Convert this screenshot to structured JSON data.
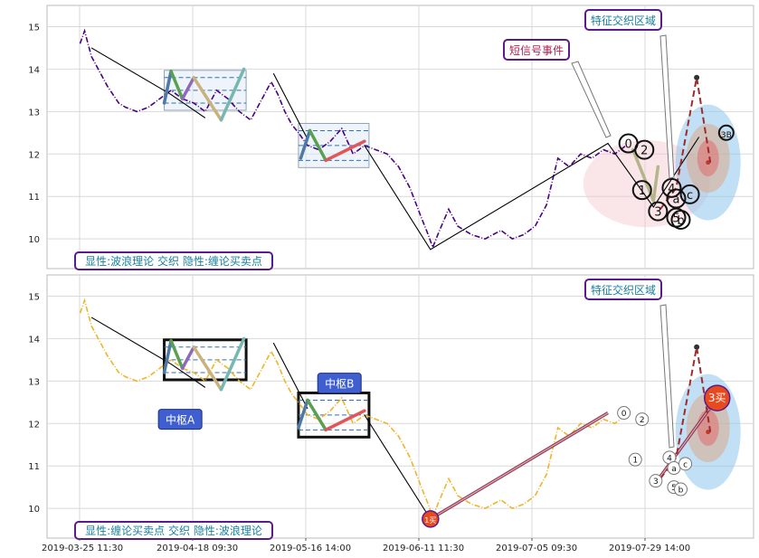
{
  "chart_data": [
    {
      "type": "line",
      "panel": "top",
      "ylim": [
        9.3,
        15.5
      ],
      "y_ticks": [
        10,
        11,
        12,
        13,
        14,
        15
      ],
      "grid": true,
      "series": [
        {
          "role": "price",
          "color": "#4B0082",
          "style": "dash-dot",
          "points": [
            [
              0.0,
              14.6
            ],
            [
              0.2,
              14.9
            ],
            [
              0.5,
              14.3
            ],
            [
              1.2,
              13.6
            ],
            [
              1.7,
              13.2
            ],
            [
              2.0,
              13.1
            ],
            [
              2.5,
              13.0
            ],
            [
              3.0,
              13.1
            ],
            [
              3.5,
              13.3
            ],
            [
              4.0,
              13.5
            ],
            [
              4.5,
              13.3
            ],
            [
              5.0,
              13.2
            ],
            [
              5.5,
              13.0
            ],
            [
              6.0,
              13.5
            ],
            [
              6.5,
              13.3
            ],
            [
              7.0,
              13.0
            ],
            [
              7.5,
              12.8
            ],
            [
              8.0,
              13.3
            ],
            [
              8.4,
              13.7
            ],
            [
              8.7,
              13.4
            ],
            [
              9.0,
              13.0
            ],
            [
              9.3,
              12.7
            ],
            [
              9.6,
              12.5
            ],
            [
              10.0,
              12.2
            ],
            [
              10.5,
              12.1
            ],
            [
              11.0,
              12.3
            ],
            [
              11.5,
              12.6
            ],
            [
              12.0,
              12.0
            ],
            [
              12.5,
              12.2
            ],
            [
              13.0,
              12.1
            ],
            [
              13.5,
              12.0
            ],
            [
              14.0,
              11.7
            ],
            [
              14.5,
              11.2
            ],
            [
              15.0,
              10.5
            ],
            [
              15.3,
              10.1
            ],
            [
              15.5,
              9.8
            ],
            [
              15.8,
              10.2
            ],
            [
              16.2,
              10.7
            ],
            [
              16.6,
              10.3
            ],
            [
              17.2,
              10.1
            ],
            [
              17.8,
              10.0
            ],
            [
              18.5,
              10.2
            ],
            [
              19.0,
              10.0
            ],
            [
              19.5,
              10.1
            ],
            [
              20.0,
              10.3
            ],
            [
              20.5,
              10.8
            ],
            [
              21.0,
              11.9
            ],
            [
              21.5,
              11.7
            ],
            [
              22.0,
              12.0
            ],
            [
              22.5,
              11.9
            ],
            [
              23.0,
              12.1
            ],
            [
              23.5,
              12.0
            ],
            [
              24.0,
              12.2
            ]
          ]
        },
        {
          "role": "stroke",
          "color": "#000000",
          "points": [
            [
              0.5,
              14.5
            ],
            [
              4.0,
              13.4
            ],
            [
              5.5,
              12.85
            ]
          ]
        },
        {
          "role": "stroke",
          "color": "#000000",
          "points": [
            [
              8.5,
              13.9
            ],
            [
              10.0,
              12.35
            ]
          ]
        },
        {
          "role": "stroke",
          "color": "#000000",
          "points": [
            [
              12.5,
              12.2
            ],
            [
              15.4,
              9.75
            ],
            [
              23.2,
              12.25
            ],
            [
              25.2,
              10.75
            ],
            [
              27.2,
              12.4
            ]
          ]
        },
        {
          "role": "wave",
          "segments": [
            {
              "color": "#4E79A7",
              "from": [
                3.7,
                13.2
              ],
              "to": [
                4.0,
                13.95
              ]
            },
            {
              "color": "#59A14F",
              "from": [
                4.0,
                13.95
              ],
              "to": [
                4.5,
                13.3
              ]
            },
            {
              "color": "#8E6BB8",
              "from": [
                4.5,
                13.3
              ],
              "to": [
                5.0,
                13.8
              ]
            },
            {
              "color": "#C9B27C",
              "from": [
                5.0,
                13.8
              ],
              "to": [
                6.2,
                12.8
              ]
            },
            {
              "color": "#76B7B2",
              "from": [
                6.2,
                12.8
              ],
              "to": [
                7.2,
                14.0
              ]
            },
            {
              "color": "#4E79A7",
              "from": [
                9.7,
                11.9
              ],
              "to": [
                10.1,
                12.55
              ]
            },
            {
              "color": "#59A14F",
              "from": [
                10.1,
                12.55
              ],
              "to": [
                10.8,
                11.85
              ]
            },
            {
              "color": "#E15759",
              "from": [
                10.8,
                11.85
              ],
              "to": [
                12.5,
                12.3
              ]
            },
            {
              "color": "#B5B58A",
              "from": [
                24.3,
                12.1
              ],
              "to": [
                25.2,
                10.9
              ]
            },
            {
              "color": "#B5B58A",
              "from": [
                25.2,
                10.9
              ],
              "to": [
                25.4,
                11.7
              ]
            }
          ]
        },
        {
          "role": "forecast",
          "color": "#A02A2A",
          "style": "dashed",
          "points": [
            [
              25.5,
              10.7
            ],
            [
              26.2,
              11.2
            ],
            [
              27.1,
              13.8
            ],
            [
              27.7,
              11.8
            ]
          ]
        }
      ],
      "zones": [
        {
          "x": [
            3.7,
            7.3
          ],
          "y": [
            13.2,
            13.8
          ],
          "style": "center-box"
        },
        {
          "x": [
            9.6,
            12.7
          ],
          "y": [
            11.85,
            12.55
          ],
          "style": "center-box"
        }
      ],
      "markers": [
        {
          "label": "0",
          "x": 24.1,
          "y": 12.25
        },
        {
          "label": "2",
          "x": 24.8,
          "y": 12.1
        },
        {
          "label": "1",
          "x": 24.7,
          "y": 11.15
        },
        {
          "label": "3",
          "x": 25.4,
          "y": 10.65
        },
        {
          "label": "4",
          "x": 26.0,
          "y": 11.2
        },
        {
          "label": "a",
          "x": 26.2,
          "y": 10.95
        },
        {
          "label": "5",
          "x": 26.2,
          "y": 10.5
        },
        {
          "label": "b",
          "x": 26.4,
          "y": 10.45
        },
        {
          "label": "c",
          "x": 26.8,
          "y": 11.05
        },
        {
          "label": "3B",
          "x": 28.4,
          "y": 12.5
        }
      ],
      "annotations": [
        {
          "text": "短信号事件",
          "kind": "callout",
          "color": "#B02050"
        },
        {
          "text": "特征交织区域",
          "kind": "callout",
          "color": "#1A7F9E"
        }
      ],
      "corner_label": "显性:波浪理论 交织 隐性:缠论买卖点"
    },
    {
      "type": "line",
      "panel": "bottom",
      "ylim": [
        9.3,
        15.5
      ],
      "y_ticks": [
        10,
        11,
        12,
        13,
        14,
        15
      ],
      "grid": true,
      "x_ticks": [
        "2019-03-25 11:30",
        "2019-04-18 09:30",
        "2019-05-16 14:00",
        "2019-06-11 11:30",
        "2019-07-05 09:30",
        "2019-07-29 14:00"
      ],
      "series": [
        {
          "role": "price",
          "color": "#F0B429",
          "style": "dash-dot",
          "points": [
            [
              0.0,
              14.6
            ],
            [
              0.2,
              14.9
            ],
            [
              0.5,
              14.3
            ],
            [
              1.2,
              13.6
            ],
            [
              1.7,
              13.2
            ],
            [
              2.0,
              13.1
            ],
            [
              2.5,
              13.0
            ],
            [
              3.0,
              13.1
            ],
            [
              3.5,
              13.3
            ],
            [
              4.0,
              13.5
            ],
            [
              4.5,
              13.3
            ],
            [
              5.0,
              13.2
            ],
            [
              5.5,
              13.0
            ],
            [
              6.0,
              13.5
            ],
            [
              6.5,
              13.3
            ],
            [
              7.0,
              13.0
            ],
            [
              7.5,
              12.8
            ],
            [
              8.0,
              13.3
            ],
            [
              8.4,
              13.7
            ],
            [
              8.7,
              13.4
            ],
            [
              9.0,
              13.0
            ],
            [
              9.3,
              12.7
            ],
            [
              9.6,
              12.5
            ],
            [
              10.0,
              12.2
            ],
            [
              10.5,
              12.1
            ],
            [
              11.0,
              12.3
            ],
            [
              11.5,
              12.6
            ],
            [
              12.0,
              12.0
            ],
            [
              12.5,
              12.2
            ],
            [
              13.0,
              12.1
            ],
            [
              13.5,
              12.0
            ],
            [
              14.0,
              11.7
            ],
            [
              14.5,
              11.2
            ],
            [
              15.0,
              10.5
            ],
            [
              15.3,
              10.1
            ],
            [
              15.5,
              9.8
            ],
            [
              15.8,
              10.2
            ],
            [
              16.2,
              10.7
            ],
            [
              16.6,
              10.3
            ],
            [
              17.2,
              10.1
            ],
            [
              17.8,
              10.0
            ],
            [
              18.5,
              10.2
            ],
            [
              19.0,
              10.0
            ],
            [
              19.5,
              10.1
            ],
            [
              20.0,
              10.3
            ],
            [
              20.5,
              10.8
            ],
            [
              21.0,
              11.9
            ],
            [
              21.5,
              11.7
            ],
            [
              22.0,
              12.0
            ],
            [
              22.5,
              11.9
            ],
            [
              23.0,
              12.1
            ],
            [
              23.5,
              12.0
            ],
            [
              24.0,
              12.2
            ]
          ]
        },
        {
          "role": "stroke",
          "color": "#000000",
          "points": [
            [
              0.5,
              14.5
            ],
            [
              4.0,
              13.4
            ],
            [
              5.5,
              12.85
            ]
          ]
        },
        {
          "role": "stroke",
          "color": "#000000",
          "points": [
            [
              8.5,
              13.9
            ],
            [
              10.0,
              12.35
            ]
          ]
        },
        {
          "role": "stroke",
          "color": "#000000",
          "points": [
            [
              12.5,
              12.2
            ],
            [
              15.4,
              9.75
            ]
          ]
        },
        {
          "role": "segment",
          "color": "#8B2D45",
          "points": [
            [
              15.4,
              9.75
            ],
            [
              23.2,
              12.25
            ]
          ]
        },
        {
          "role": "segment",
          "color": "#8B2D45",
          "points": [
            [
              25.3,
              10.6
            ],
            [
              28.0,
              12.6
            ]
          ]
        },
        {
          "role": "wave",
          "segments": [
            {
              "color": "#4E79A7",
              "from": [
                3.7,
                13.2
              ],
              "to": [
                4.0,
                13.95
              ]
            },
            {
              "color": "#59A14F",
              "from": [
                4.0,
                13.95
              ],
              "to": [
                4.5,
                13.3
              ]
            },
            {
              "color": "#8E6BB8",
              "from": [
                4.5,
                13.3
              ],
              "to": [
                5.0,
                13.8
              ]
            },
            {
              "color": "#C9B27C",
              "from": [
                5.0,
                13.8
              ],
              "to": [
                6.2,
                12.8
              ]
            },
            {
              "color": "#76B7B2",
              "from": [
                6.2,
                12.8
              ],
              "to": [
                7.2,
                14.0
              ]
            },
            {
              "color": "#4E79A7",
              "from": [
                9.6,
                11.9
              ],
              "to": [
                10.0,
                12.55
              ]
            },
            {
              "color": "#59A14F",
              "from": [
                10.0,
                12.55
              ],
              "to": [
                10.8,
                11.85
              ]
            },
            {
              "color": "#E15759",
              "from": [
                10.8,
                11.85
              ],
              "to": [
                12.5,
                12.3
              ]
            }
          ]
        },
        {
          "role": "forecast",
          "color": "#A02A2A",
          "style": "dashed",
          "points": [
            [
              25.5,
              10.7
            ],
            [
              26.2,
              11.2
            ],
            [
              27.1,
              13.8
            ],
            [
              27.7,
              11.8
            ]
          ]
        }
      ],
      "zones": [
        {
          "x": [
            3.7,
            7.3
          ],
          "y": [
            13.2,
            13.8
          ],
          "style": "center-box",
          "label": "中枢A"
        },
        {
          "x": [
            9.6,
            12.7
          ],
          "y": [
            11.85,
            12.55
          ],
          "style": "center-box",
          "label": "中枢B"
        }
      ],
      "markers": [
        {
          "label": "0",
          "x": 23.9,
          "y": 12.25
        },
        {
          "label": "2",
          "x": 24.7,
          "y": 12.1
        },
        {
          "label": "1",
          "x": 24.4,
          "y": 11.15
        },
        {
          "label": "3",
          "x": 25.3,
          "y": 10.65
        },
        {
          "label": "4",
          "x": 25.9,
          "y": 11.2
        },
        {
          "label": "a",
          "x": 26.1,
          "y": 10.95
        },
        {
          "label": "5",
          "x": 26.1,
          "y": 10.5
        },
        {
          "label": "b",
          "x": 26.4,
          "y": 10.45
        },
        {
          "label": "c",
          "x": 26.6,
          "y": 11.05
        }
      ],
      "signals": [
        {
          "label": "1买",
          "x": 15.4,
          "y": 9.75
        },
        {
          "label": "3买",
          "x": 28.0,
          "y": 12.6
        }
      ],
      "annotations": [
        {
          "text": "特征交织区域",
          "kind": "callout",
          "color": "#1A7F9E"
        }
      ],
      "corner_label": "显性:缠论买卖点 交织 隐性:波浪理论"
    }
  ]
}
